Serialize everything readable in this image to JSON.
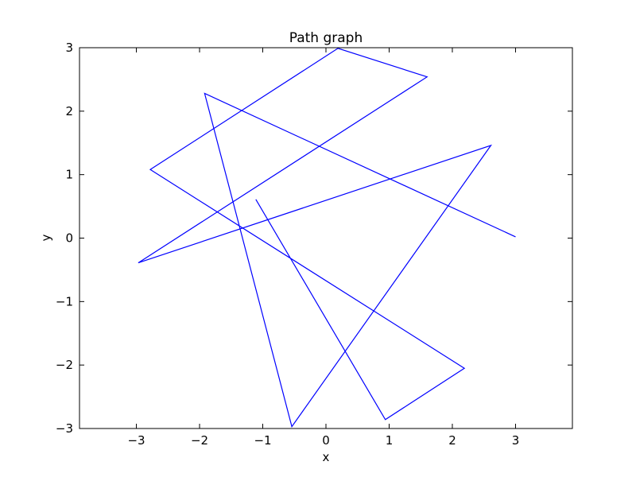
{
  "chart_data": {
    "type": "line",
    "title": "Path graph",
    "xlabel": "x",
    "ylabel": "y",
    "xlim": [
      -3.9,
      3.9
    ],
    "ylim": [
      -3,
      3
    ],
    "xticks": [
      -3,
      -2,
      -1,
      0,
      1,
      2,
      3
    ],
    "yticks": [
      -3,
      -2,
      -1,
      0,
      1,
      2,
      3
    ],
    "xtick_labels": [
      "−3",
      "−2",
      "−1",
      "0",
      "1",
      "2",
      "3"
    ],
    "ytick_labels": [
      "−3",
      "−2",
      "−1",
      "0",
      "1",
      "2",
      "3"
    ],
    "grid": false,
    "line_color": "#0000ff",
    "series": [
      {
        "x": [
          3.0,
          -1.92,
          -0.54,
          2.61,
          -2.97,
          1.6,
          0.19,
          -2.78,
          2.19,
          0.94,
          -1.11
        ],
        "y": [
          0.02,
          2.28,
          -2.97,
          1.46,
          -0.39,
          2.54,
          2.99,
          1.08,
          -2.05,
          -2.86,
          0.61
        ]
      }
    ]
  }
}
